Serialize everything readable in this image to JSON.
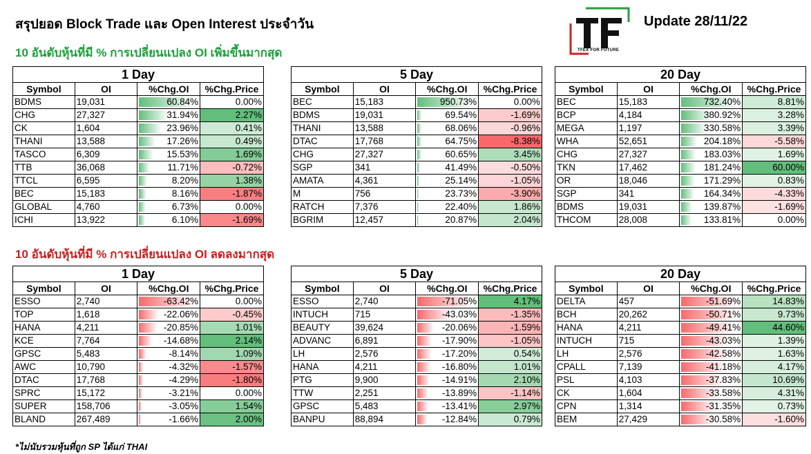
{
  "title": "สรุปยอด Block Trade และ Open Interest ประจำวัน",
  "update_label": "Update 28/11/22",
  "logo": {
    "letters": "TF",
    "tagline": "TFEX FOR FUTURE"
  },
  "section_up_heading": "10 อันดับหุ้นที่มี % การเปลี่ยนแปลง OI เพิ่มขึ้นมากสุด",
  "section_down_heading": "10 อันดับหุ้นที่มี % การเปลี่ยนแปลง OI ลดลงมากสุด",
  "note": "*ไม่นับรวมหุ้นที่ถูก SP ได้แก่ THAI",
  "columns": [
    "Symbol",
    "OI",
    "%Chg.OI",
    "%Chg.Price"
  ],
  "colors": {
    "up_heading": "#19a03a",
    "down_heading": "#c81e1e",
    "bar_green": "#63be7b",
    "bar_red": "#f8696b"
  },
  "up_tables": [
    {
      "period": "1 Day",
      "rows": [
        {
          "symbol": "BDMS",
          "oi": "19,031",
          "chg_oi": "60.84%",
          "chg_price": "0.00%",
          "oi_v": 60.84,
          "price_v": 0.0
        },
        {
          "symbol": "CHG",
          "oi": "27,327",
          "chg_oi": "31.94%",
          "chg_price": "2.27%",
          "oi_v": 31.94,
          "price_v": 2.27
        },
        {
          "symbol": "CK",
          "oi": "1,604",
          "chg_oi": "23.96%",
          "chg_price": "0.41%",
          "oi_v": 23.96,
          "price_v": 0.41
        },
        {
          "symbol": "THANI",
          "oi": "13,588",
          "chg_oi": "17.26%",
          "chg_price": "0.49%",
          "oi_v": 17.26,
          "price_v": 0.49
        },
        {
          "symbol": "TASCO",
          "oi": "6,309",
          "chg_oi": "15.53%",
          "chg_price": "1.69%",
          "oi_v": 15.53,
          "price_v": 1.69
        },
        {
          "symbol": "TTB",
          "oi": "36,068",
          "chg_oi": "11.71%",
          "chg_price": "-0.72%",
          "oi_v": 11.71,
          "price_v": -0.72
        },
        {
          "symbol": "TTCL",
          "oi": "6,595",
          "chg_oi": "8.20%",
          "chg_price": "1.38%",
          "oi_v": 8.2,
          "price_v": 1.38
        },
        {
          "symbol": "BEC",
          "oi": "15,183",
          "chg_oi": "8.16%",
          "chg_price": "-1.87%",
          "oi_v": 8.16,
          "price_v": -1.87
        },
        {
          "symbol": "GLOBAL",
          "oi": "4,760",
          "chg_oi": "6.73%",
          "chg_price": "0.00%",
          "oi_v": 6.73,
          "price_v": 0.0
        },
        {
          "symbol": "ICHI",
          "oi": "13,922",
          "chg_oi": "6.10%",
          "chg_price": "-1.69%",
          "oi_v": 6.1,
          "price_v": -1.69
        }
      ]
    },
    {
      "period": "5 Day",
      "rows": [
        {
          "symbol": "BEC",
          "oi": "15,183",
          "chg_oi": "950.73%",
          "chg_price": "0.00%",
          "oi_v": 950.73,
          "price_v": 0.0
        },
        {
          "symbol": "BDMS",
          "oi": "19,031",
          "chg_oi": "69.54%",
          "chg_price": "-1.69%",
          "oi_v": 69.54,
          "price_v": -1.69
        },
        {
          "symbol": "THANI",
          "oi": "13,588",
          "chg_oi": "68.06%",
          "chg_price": "-0.96%",
          "oi_v": 68.06,
          "price_v": -0.96
        },
        {
          "symbol": "DTAC",
          "oi": "17,768",
          "chg_oi": "64.75%",
          "chg_price": "-8.38%",
          "oi_v": 64.75,
          "price_v": -8.38
        },
        {
          "symbol": "CHG",
          "oi": "27,327",
          "chg_oi": "60.65%",
          "chg_price": "3.45%",
          "oi_v": 60.65,
          "price_v": 3.45
        },
        {
          "symbol": "SGP",
          "oi": "341",
          "chg_oi": "41.49%",
          "chg_price": "-0.50%",
          "oi_v": 41.49,
          "price_v": -0.5
        },
        {
          "symbol": "AMATA",
          "oi": "4,361",
          "chg_oi": "25.14%",
          "chg_price": "-1.05%",
          "oi_v": 25.14,
          "price_v": -1.05
        },
        {
          "symbol": "M",
          "oi": "756",
          "chg_oi": "23.73%",
          "chg_price": "-3.90%",
          "oi_v": 23.73,
          "price_v": -3.9
        },
        {
          "symbol": "RATCH",
          "oi": "7,376",
          "chg_oi": "22.40%",
          "chg_price": "1.86%",
          "oi_v": 22.4,
          "price_v": 1.86
        },
        {
          "symbol": "BGRIM",
          "oi": "12,457",
          "chg_oi": "20.87%",
          "chg_price": "2.04%",
          "oi_v": 20.87,
          "price_v": 2.04
        }
      ]
    },
    {
      "period": "20 Day",
      "rows": [
        {
          "symbol": "BEC",
          "oi": "15,183",
          "chg_oi": "732.40%",
          "chg_price": "8.81%",
          "oi_v": 732.4,
          "price_v": 8.81
        },
        {
          "symbol": "BCP",
          "oi": "4,184",
          "chg_oi": "380.92%",
          "chg_price": "3.28%",
          "oi_v": 380.92,
          "price_v": 3.28
        },
        {
          "symbol": "MEGA",
          "oi": "1,197",
          "chg_oi": "330.58%",
          "chg_price": "3.39%",
          "oi_v": 330.58,
          "price_v": 3.39
        },
        {
          "symbol": "WHA",
          "oi": "52,651",
          "chg_oi": "204.18%",
          "chg_price": "-5.58%",
          "oi_v": 204.18,
          "price_v": -5.58
        },
        {
          "symbol": "CHG",
          "oi": "27,327",
          "chg_oi": "183.03%",
          "chg_price": "1.69%",
          "oi_v": 183.03,
          "price_v": 1.69
        },
        {
          "symbol": "TKN",
          "oi": "17,462",
          "chg_oi": "181.24%",
          "chg_price": "60.00%",
          "oi_v": 181.24,
          "price_v": 60.0
        },
        {
          "symbol": "OR",
          "oi": "18,046",
          "chg_oi": "171.29%",
          "chg_price": "0.83%",
          "oi_v": 171.29,
          "price_v": 0.83
        },
        {
          "symbol": "SGP",
          "oi": "341",
          "chg_oi": "164.34%",
          "chg_price": "-4.33%",
          "oi_v": 164.34,
          "price_v": -4.33
        },
        {
          "symbol": "BDMS",
          "oi": "19,031",
          "chg_oi": "139.87%",
          "chg_price": "-1.69%",
          "oi_v": 139.87,
          "price_v": -1.69
        },
        {
          "symbol": "THCOM",
          "oi": "28,008",
          "chg_oi": "133.81%",
          "chg_price": "0.00%",
          "oi_v": 133.81,
          "price_v": 0.0
        }
      ]
    }
  ],
  "down_tables": [
    {
      "period": "1 Day",
      "rows": [
        {
          "symbol": "ESSO",
          "oi": "2,740",
          "chg_oi": "-63.42%",
          "chg_price": "0.00%",
          "oi_v": -63.42,
          "price_v": 0.0
        },
        {
          "symbol": "TOP",
          "oi": "1,618",
          "chg_oi": "-22.06%",
          "chg_price": "-0.45%",
          "oi_v": -22.06,
          "price_v": -0.45
        },
        {
          "symbol": "HANA",
          "oi": "4,211",
          "chg_oi": "-20.85%",
          "chg_price": "1.01%",
          "oi_v": -20.85,
          "price_v": 1.01
        },
        {
          "symbol": "KCE",
          "oi": "7,764",
          "chg_oi": "-14.68%",
          "chg_price": "2.14%",
          "oi_v": -14.68,
          "price_v": 2.14
        },
        {
          "symbol": "GPSC",
          "oi": "5,483",
          "chg_oi": "-8.14%",
          "chg_price": "1.09%",
          "oi_v": -8.14,
          "price_v": 1.09
        },
        {
          "symbol": "AWC",
          "oi": "10,790",
          "chg_oi": "-4.32%",
          "chg_price": "-1.57%",
          "oi_v": -4.32,
          "price_v": -1.57
        },
        {
          "symbol": "DTAC",
          "oi": "17,768",
          "chg_oi": "-4.29%",
          "chg_price": "-1.80%",
          "oi_v": -4.29,
          "price_v": -1.8
        },
        {
          "symbol": "SPRC",
          "oi": "15,172",
          "chg_oi": "-3.21%",
          "chg_price": "0.00%",
          "oi_v": -3.21,
          "price_v": 0.0
        },
        {
          "symbol": "SUPER",
          "oi": "158,706",
          "chg_oi": "-3.05%",
          "chg_price": "1.54%",
          "oi_v": -3.05,
          "price_v": 1.54
        },
        {
          "symbol": "BLAND",
          "oi": "267,489",
          "chg_oi": "-1.66%",
          "chg_price": "2.00%",
          "oi_v": -1.66,
          "price_v": 2.0
        }
      ]
    },
    {
      "period": "5 Day",
      "rows": [
        {
          "symbol": "ESSO",
          "oi": "2,740",
          "chg_oi": "-71.05%",
          "chg_price": "4.17%",
          "oi_v": -71.05,
          "price_v": 4.17
        },
        {
          "symbol": "INTUCH",
          "oi": "715",
          "chg_oi": "-43.03%",
          "chg_price": "-1.35%",
          "oi_v": -43.03,
          "price_v": -1.35
        },
        {
          "symbol": "BEAUTY",
          "oi": "39,624",
          "chg_oi": "-20.06%",
          "chg_price": "-1.59%",
          "oi_v": -20.06,
          "price_v": -1.59
        },
        {
          "symbol": "ADVANC",
          "oi": "6,891",
          "chg_oi": "-17.90%",
          "chg_price": "-1.05%",
          "oi_v": -17.9,
          "price_v": -1.05
        },
        {
          "symbol": "LH",
          "oi": "2,576",
          "chg_oi": "-17.20%",
          "chg_price": "0.54%",
          "oi_v": -17.2,
          "price_v": 0.54
        },
        {
          "symbol": "HANA",
          "oi": "4,211",
          "chg_oi": "-16.80%",
          "chg_price": "1.01%",
          "oi_v": -16.8,
          "price_v": 1.01
        },
        {
          "symbol": "PTG",
          "oi": "9,900",
          "chg_oi": "-14.91%",
          "chg_price": "2.10%",
          "oi_v": -14.91,
          "price_v": 2.1
        },
        {
          "symbol": "TTW",
          "oi": "2,251",
          "chg_oi": "-13.89%",
          "chg_price": "-1.14%",
          "oi_v": -13.89,
          "price_v": -1.14
        },
        {
          "symbol": "GPSC",
          "oi": "5,483",
          "chg_oi": "-13.41%",
          "chg_price": "2.97%",
          "oi_v": -13.41,
          "price_v": 2.97
        },
        {
          "symbol": "BANPU",
          "oi": "88,894",
          "chg_oi": "-12.84%",
          "chg_price": "0.79%",
          "oi_v": -12.84,
          "price_v": 0.79
        }
      ]
    },
    {
      "period": "20 Day",
      "rows": [
        {
          "symbol": "DELTA",
          "oi": "457",
          "chg_oi": "-51.69%",
          "chg_price": "14.83%",
          "oi_v": -51.69,
          "price_v": 14.83
        },
        {
          "symbol": "BCH",
          "oi": "20,262",
          "chg_oi": "-50.71%",
          "chg_price": "9.73%",
          "oi_v": -50.71,
          "price_v": 9.73
        },
        {
          "symbol": "HANA",
          "oi": "4,211",
          "chg_oi": "-49.41%",
          "chg_price": "44.60%",
          "oi_v": -49.41,
          "price_v": 44.6
        },
        {
          "symbol": "INTUCH",
          "oi": "715",
          "chg_oi": "-43.03%",
          "chg_price": "1.39%",
          "oi_v": -43.03,
          "price_v": 1.39
        },
        {
          "symbol": "LH",
          "oi": "2,576",
          "chg_oi": "-42.58%",
          "chg_price": "1.63%",
          "oi_v": -42.58,
          "price_v": 1.63
        },
        {
          "symbol": "CPALL",
          "oi": "7,139",
          "chg_oi": "-41.18%",
          "chg_price": "4.17%",
          "oi_v": -41.18,
          "price_v": 4.17
        },
        {
          "symbol": "PSL",
          "oi": "4,103",
          "chg_oi": "-37.83%",
          "chg_price": "10.69%",
          "oi_v": -37.83,
          "price_v": 10.69
        },
        {
          "symbol": "CK",
          "oi": "1,604",
          "chg_oi": "-33.58%",
          "chg_price": "4.31%",
          "oi_v": -33.58,
          "price_v": 4.31
        },
        {
          "symbol": "CPN",
          "oi": "1,314",
          "chg_oi": "-31.35%",
          "chg_price": "0.73%",
          "oi_v": -31.35,
          "price_v": 0.73
        },
        {
          "symbol": "BEM",
          "oi": "27,429",
          "chg_oi": "-30.58%",
          "chg_price": "-1.60%",
          "oi_v": -30.58,
          "price_v": -1.6
        }
      ]
    }
  ]
}
